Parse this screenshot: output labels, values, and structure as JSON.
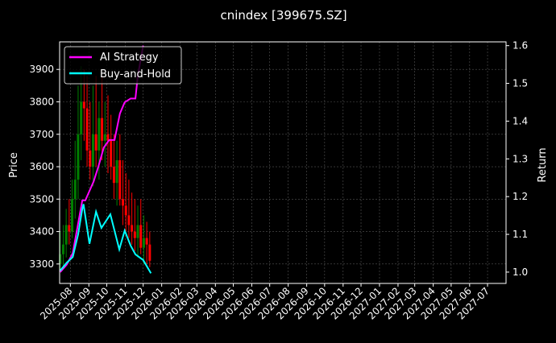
{
  "chart_data": {
    "type": "line",
    "title": "cnindex [399675.SZ]",
    "ylabel_left": "Price",
    "ylabel_right": "Return",
    "ylim_left": [
      3240,
      3985
    ],
    "ylim_right": [
      0.97,
      1.61
    ],
    "xlim": [
      "2025-07-14",
      "2027-08-01"
    ],
    "grid": true,
    "legend": "top-left",
    "left_ticks": [
      3300,
      3400,
      3500,
      3600,
      3700,
      3800,
      3900
    ],
    "right_ticks": [
      "1.0",
      "1.1",
      "1.2",
      "1.3",
      "1.4",
      "1.5",
      "1.6"
    ],
    "x_ticks": [
      "2025-08",
      "2025-09",
      "2025-10",
      "2025-11",
      "2025-12",
      "2026-01",
      "2026-02",
      "2026-03",
      "2026-04",
      "2026-05",
      "2026-06",
      "2026-07",
      "2026-08",
      "2026-09",
      "2026-10",
      "2026-11",
      "2026-12",
      "2027-01",
      "2027-02",
      "2027-03",
      "2027-04",
      "2027-05",
      "2027-06",
      "2027-07"
    ],
    "series": [
      {
        "name": "AI Strategy",
        "color": "#ff00ff",
        "axis": "right",
        "x": [
          "2025-07-15",
          "2025-07-26",
          "2025-08-05",
          "2025-08-21",
          "2025-08-26",
          "2025-09-09",
          "2025-09-17",
          "2025-09-26",
          "2025-10-05",
          "2025-10-14",
          "2025-10-23",
          "2025-10-31",
          "2025-11-10",
          "2025-11-18",
          "2025-11-22",
          "2025-12-01"
        ],
        "y": [
          1.0,
          1.02,
          1.05,
          1.19,
          1.19,
          1.24,
          1.28,
          1.33,
          1.35,
          1.35,
          1.42,
          1.45,
          1.46,
          1.46,
          1.52,
          1.6
        ]
      },
      {
        "name": "Buy-and-Hold",
        "color": "#00ffff",
        "axis": "right",
        "x": [
          "2025-07-15",
          "2025-07-26",
          "2025-08-05",
          "2025-08-14",
          "2025-08-21",
          "2025-08-23",
          "2025-09-02",
          "2025-09-13",
          "2025-09-22",
          "2025-10-07",
          "2025-10-22",
          "2025-10-31",
          "2025-11-10",
          "2025-11-18",
          "2025-12-01",
          "2025-12-14"
        ],
        "y": [
          1.004,
          1.025,
          1.04,
          1.1,
          1.168,
          1.18,
          1.075,
          1.16,
          1.117,
          1.153,
          1.06,
          1.11,
          1.07,
          1.047,
          1.032,
          0.997
        ]
      }
    ],
    "candles": {
      "up_color": "#008000",
      "down_color": "#ff0000",
      "axis": "left",
      "x": [
        "2025-07-15",
        "2025-07-20",
        "2025-07-25",
        "2025-07-30",
        "2025-08-04",
        "2025-08-09",
        "2025-08-14",
        "2025-08-19",
        "2025-08-24",
        "2025-08-29",
        "2025-09-03",
        "2025-09-08",
        "2025-09-13",
        "2025-09-18",
        "2025-09-23",
        "2025-09-28",
        "2025-10-03",
        "2025-10-08",
        "2025-10-13",
        "2025-10-18",
        "2025-10-23",
        "2025-10-28",
        "2025-11-02",
        "2025-11-07",
        "2025-11-12",
        "2025-11-17",
        "2025-11-22",
        "2025-11-27",
        "2025-12-02",
        "2025-12-07",
        "2025-12-12"
      ],
      "open": [
        3300,
        3330,
        3360,
        3420,
        3400,
        3500,
        3560,
        3700,
        3800,
        3780,
        3650,
        3600,
        3700,
        3650,
        3750,
        3680,
        3700,
        3680,
        3600,
        3550,
        3620,
        3500,
        3480,
        3450,
        3420,
        3400,
        3380,
        3420,
        3350,
        3380,
        3360
      ],
      "high": [
        3400,
        3420,
        3470,
        3500,
        3560,
        3680,
        3850,
        3910,
        3900,
        3880,
        3800,
        3850,
        3880,
        3800,
        3880,
        3800,
        3820,
        3760,
        3700,
        3680,
        3700,
        3620,
        3580,
        3560,
        3520,
        3500,
        3480,
        3500,
        3450,
        3430,
        3400
      ],
      "low": [
        3280,
        3290,
        3320,
        3360,
        3380,
        3440,
        3500,
        3620,
        3680,
        3600,
        3560,
        3540,
        3600,
        3560,
        3620,
        3600,
        3580,
        3560,
        3500,
        3480,
        3480,
        3420,
        3400,
        3380,
        3360,
        3340,
        3320,
        3330,
        3300,
        3300,
        3290
      ],
      "close": [
        3330,
        3360,
        3420,
        3400,
        3500,
        3560,
        3700,
        3800,
        3780,
        3650,
        3600,
        3700,
        3650,
        3750,
        3680,
        3700,
        3680,
        3600,
        3550,
        3620,
        3500,
        3480,
        3450,
        3420,
        3400,
        3380,
        3420,
        3350,
        3380,
        3360,
        3310
      ]
    }
  }
}
